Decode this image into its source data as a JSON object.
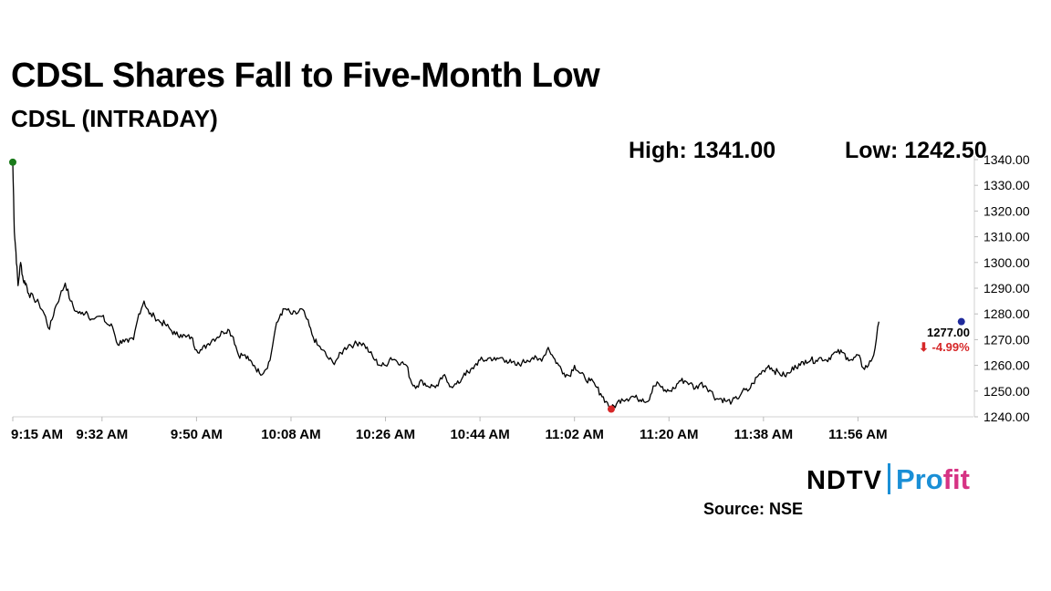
{
  "header": {
    "title": "CDSL Shares Fall to Five-Month Low",
    "subtitle": "CDSL (INTRADAY)",
    "high_label": "High: 1341.00",
    "low_label": "Low: 1242.50"
  },
  "chart_data": {
    "type": "line",
    "title": "CDSL Shares Fall to Five-Month Low",
    "subtitle": "CDSL (INTRADAY)",
    "xlabel": "",
    "ylabel": "",
    "x_tick_labels": [
      "9:15 AM",
      "9:32 AM",
      "9:50 AM",
      "10:08 AM",
      "10:26 AM",
      "10:44 AM",
      "11:02 AM",
      "11:20 AM",
      "11:38 AM",
      "11:56 AM"
    ],
    "y_tick_labels": [
      "1240.00",
      "1250.00",
      "1260.00",
      "1270.00",
      "1280.00",
      "1290.00",
      "1300.00",
      "1310.00",
      "1320.00",
      "1330.00",
      "1340.00"
    ],
    "ylim": [
      1240,
      1340
    ],
    "x_domain_minutes": [
      555,
      738
    ],
    "axis_side": "right",
    "grid": false,
    "series": [
      {
        "points": [
          [
            555,
            1339
          ],
          [
            555.3,
            1312
          ],
          [
            555.6,
            1304
          ],
          [
            556,
            1291
          ],
          [
            556.5,
            1300
          ],
          [
            557,
            1293
          ],
          [
            557.5,
            1292
          ],
          [
            558,
            1288
          ],
          [
            559,
            1286
          ],
          [
            560,
            1284
          ],
          [
            561,
            1280
          ],
          [
            562,
            1274
          ],
          [
            563,
            1282
          ],
          [
            564,
            1287
          ],
          [
            565,
            1292
          ],
          [
            566,
            1285
          ],
          [
            567,
            1281
          ],
          [
            568,
            1280
          ],
          [
            569,
            1281
          ],
          [
            570,
            1278
          ],
          [
            572,
            1279
          ],
          [
            573,
            1276
          ],
          [
            574,
            1275
          ],
          [
            575,
            1268
          ],
          [
            576,
            1270
          ],
          [
            577,
            1269
          ],
          [
            578,
            1270
          ],
          [
            579,
            1280
          ],
          [
            580,
            1285
          ],
          [
            581,
            1280
          ],
          [
            582,
            1279
          ],
          [
            583,
            1277
          ],
          [
            584,
            1276
          ],
          [
            585,
            1274
          ],
          [
            586,
            1272
          ],
          [
            587,
            1272
          ],
          [
            588,
            1271
          ],
          [
            589,
            1271
          ],
          [
            590,
            1266
          ],
          [
            591,
            1266
          ],
          [
            592,
            1268
          ],
          [
            593,
            1270
          ],
          [
            594,
            1271
          ],
          [
            595,
            1273
          ],
          [
            596,
            1274
          ],
          [
            597,
            1271
          ],
          [
            598,
            1264
          ],
          [
            599,
            1264
          ],
          [
            600,
            1262
          ],
          [
            601,
            1260
          ],
          [
            602,
            1257
          ],
          [
            603,
            1258
          ],
          [
            604,
            1262
          ],
          [
            605,
            1274
          ],
          [
            606,
            1280
          ],
          [
            607,
            1282
          ],
          [
            608,
            1280
          ],
          [
            609,
            1280
          ],
          [
            610,
            1282
          ],
          [
            611,
            1278
          ],
          [
            612,
            1272
          ],
          [
            613,
            1268
          ],
          [
            614,
            1266
          ],
          [
            615,
            1263
          ],
          [
            616,
            1261
          ],
          [
            617,
            1263
          ],
          [
            618,
            1266
          ],
          [
            619,
            1268
          ],
          [
            620,
            1268
          ],
          [
            621,
            1269
          ],
          [
            622,
            1268
          ],
          [
            623,
            1265
          ],
          [
            624,
            1262
          ],
          [
            625,
            1260
          ],
          [
            626,
            1260
          ],
          [
            627,
            1263
          ],
          [
            628,
            1262
          ],
          [
            629,
            1261
          ],
          [
            630,
            1260
          ],
          [
            631,
            1253
          ],
          [
            632,
            1252
          ],
          [
            633,
            1254
          ],
          [
            634,
            1252
          ],
          [
            635,
            1252
          ],
          [
            636,
            1252
          ],
          [
            637,
            1256
          ],
          [
            638,
            1253
          ],
          [
            639,
            1252
          ],
          [
            640,
            1253
          ],
          [
            641,
            1257
          ],
          [
            642,
            1257
          ],
          [
            643,
            1260
          ],
          [
            644,
            1262
          ],
          [
            645,
            1262
          ],
          [
            646,
            1263
          ],
          [
            647,
            1262
          ],
          [
            648,
            1263
          ],
          [
            649,
            1262
          ],
          [
            650,
            1261
          ],
          [
            651,
            1260
          ],
          [
            652,
            1261
          ],
          [
            653,
            1262
          ],
          [
            654,
            1263
          ],
          [
            655,
            1262
          ],
          [
            656,
            1263
          ],
          [
            657,
            1267
          ],
          [
            658,
            1263
          ],
          [
            659,
            1260
          ],
          [
            660,
            1257
          ],
          [
            661,
            1256
          ],
          [
            662,
            1260
          ],
          [
            663,
            1257
          ],
          [
            664,
            1255
          ],
          [
            665,
            1254
          ],
          [
            666,
            1252
          ],
          [
            667,
            1249
          ],
          [
            668,
            1246
          ],
          [
            669,
            1243
          ],
          [
            670,
            1245
          ],
          [
            671,
            1247
          ],
          [
            672,
            1247
          ],
          [
            673,
            1248
          ],
          [
            674,
            1247
          ],
          [
            675,
            1247
          ],
          [
            676,
            1246
          ],
          [
            677,
            1252
          ],
          [
            678,
            1253
          ],
          [
            679,
            1250
          ],
          [
            680,
            1250
          ],
          [
            681,
            1251
          ],
          [
            682,
            1254
          ],
          [
            683,
            1254
          ],
          [
            684,
            1253
          ],
          [
            685,
            1251
          ],
          [
            686,
            1253
          ],
          [
            687,
            1252
          ],
          [
            688,
            1250
          ],
          [
            689,
            1247
          ],
          [
            690,
            1247
          ],
          [
            691,
            1246
          ],
          [
            692,
            1246
          ],
          [
            693,
            1247
          ],
          [
            694,
            1250
          ],
          [
            695,
            1250
          ],
          [
            696,
            1253
          ],
          [
            697,
            1256
          ],
          [
            698,
            1258
          ],
          [
            699,
            1260
          ],
          [
            700,
            1258
          ],
          [
            701,
            1257
          ],
          [
            702,
            1256
          ],
          [
            703,
            1257
          ],
          [
            704,
            1260
          ],
          [
            705,
            1260
          ],
          [
            706,
            1262
          ],
          [
            707,
            1262
          ],
          [
            708,
            1262
          ],
          [
            709,
            1263
          ],
          [
            710,
            1262
          ],
          [
            711,
            1264
          ],
          [
            712,
            1265
          ],
          [
            713,
            1265
          ],
          [
            714,
            1263
          ],
          [
            715,
            1262
          ],
          [
            716,
            1264
          ],
          [
            717,
            1259
          ],
          [
            718,
            1260
          ],
          [
            719,
            1264
          ],
          [
            720,
            1277
          ]
        ]
      }
    ],
    "markers": {
      "high": {
        "x": 555,
        "y": 1339,
        "color": "#1a7a1a"
      },
      "low": {
        "x": 669,
        "y": 1243,
        "color": "#d62728"
      },
      "last": {
        "x": 735.7,
        "y": 1277,
        "color": "#1f2a9c"
      }
    },
    "last_value_label": "1277.00",
    "change_label": "⬇ -4.99%",
    "change_color": "#d62728",
    "line_color": "#000000"
  },
  "footer": {
    "logo_ndtv": "NDTV",
    "logo_profit_1": "Pro",
    "logo_profit_2": "fit",
    "source": "Source: NSE"
  }
}
